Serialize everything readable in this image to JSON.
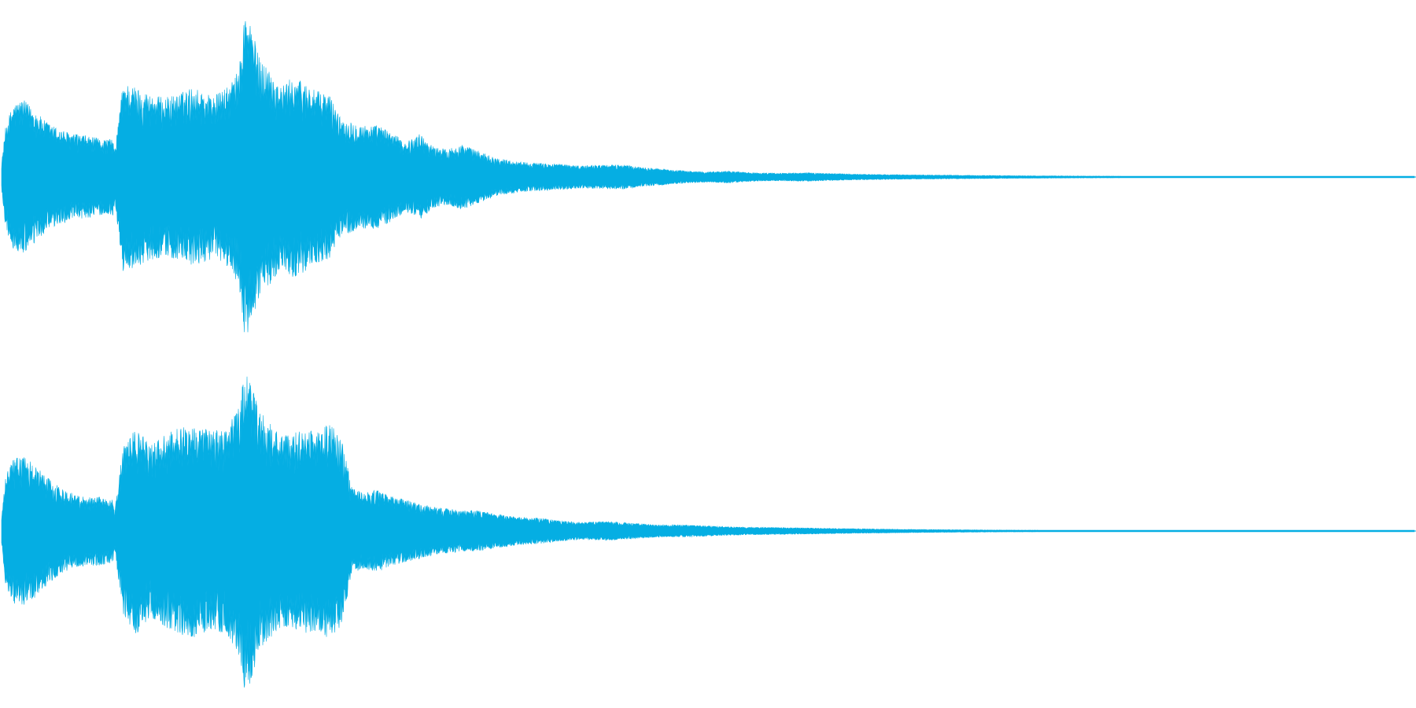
{
  "waveform": {
    "color": "#05aee3",
    "background": "#ffffff",
    "channels": [
      {
        "name": "channel-1",
        "envelope": [
          [
            0.0,
            0.08
          ],
          [
            0.003,
            0.3
          ],
          [
            0.008,
            0.42
          ],
          [
            0.015,
            0.45
          ],
          [
            0.022,
            0.4
          ],
          [
            0.03,
            0.33
          ],
          [
            0.04,
            0.28
          ],
          [
            0.05,
            0.25
          ],
          [
            0.06,
            0.24
          ],
          [
            0.07,
            0.22
          ],
          [
            0.079,
            0.22
          ],
          [
            0.08,
            0.14
          ],
          [
            0.086,
            0.55
          ],
          [
            0.095,
            0.52
          ],
          [
            0.105,
            0.48
          ],
          [
            0.115,
            0.46
          ],
          [
            0.125,
            0.48
          ],
          [
            0.135,
            0.52
          ],
          [
            0.15,
            0.47
          ],
          [
            0.16,
            0.52
          ],
          [
            0.168,
            0.62
          ],
          [
            0.172,
            0.95
          ],
          [
            0.176,
            0.9
          ],
          [
            0.182,
            0.7
          ],
          [
            0.19,
            0.62
          ],
          [
            0.198,
            0.52
          ],
          [
            0.206,
            0.58
          ],
          [
            0.214,
            0.55
          ],
          [
            0.222,
            0.5
          ],
          [
            0.232,
            0.48
          ],
          [
            0.24,
            0.34
          ],
          [
            0.248,
            0.32
          ],
          [
            0.256,
            0.3
          ],
          [
            0.266,
            0.3
          ],
          [
            0.276,
            0.26
          ],
          [
            0.286,
            0.2
          ],
          [
            0.296,
            0.25
          ],
          [
            0.305,
            0.18
          ],
          [
            0.315,
            0.16
          ],
          [
            0.325,
            0.19
          ],
          [
            0.335,
            0.16
          ],
          [
            0.35,
            0.11
          ],
          [
            0.365,
            0.09
          ],
          [
            0.38,
            0.08
          ],
          [
            0.395,
            0.075
          ],
          [
            0.41,
            0.065
          ],
          [
            0.425,
            0.07
          ],
          [
            0.44,
            0.07
          ],
          [
            0.455,
            0.055
          ],
          [
            0.47,
            0.045
          ],
          [
            0.485,
            0.035
          ],
          [
            0.5,
            0.03
          ],
          [
            0.515,
            0.035
          ],
          [
            0.53,
            0.025
          ],
          [
            0.55,
            0.022
          ],
          [
            0.57,
            0.025
          ],
          [
            0.59,
            0.02
          ],
          [
            0.61,
            0.016
          ],
          [
            0.64,
            0.013
          ],
          [
            0.67,
            0.011
          ],
          [
            0.7,
            0.009
          ],
          [
            0.73,
            0.007
          ],
          [
            0.76,
            0.006
          ],
          [
            0.79,
            0.005
          ],
          [
            0.81,
            0.004
          ],
          [
            0.83,
            0.002
          ],
          [
            0.86,
            0.0015
          ],
          [
            1.0,
            0.0008
          ]
        ]
      },
      {
        "name": "channel-2",
        "envelope": [
          [
            0.0,
            0.08
          ],
          [
            0.003,
            0.32
          ],
          [
            0.008,
            0.42
          ],
          [
            0.015,
            0.43
          ],
          [
            0.022,
            0.4
          ],
          [
            0.03,
            0.33
          ],
          [
            0.04,
            0.26
          ],
          [
            0.05,
            0.22
          ],
          [
            0.06,
            0.2
          ],
          [
            0.07,
            0.2
          ],
          [
            0.079,
            0.18
          ],
          [
            0.08,
            0.12
          ],
          [
            0.086,
            0.48
          ],
          [
            0.095,
            0.6
          ],
          [
            0.105,
            0.5
          ],
          [
            0.115,
            0.55
          ],
          [
            0.125,
            0.6
          ],
          [
            0.135,
            0.62
          ],
          [
            0.15,
            0.58
          ],
          [
            0.16,
            0.6
          ],
          [
            0.168,
            0.72
          ],
          [
            0.172,
            0.92
          ],
          [
            0.176,
            0.88
          ],
          [
            0.182,
            0.7
          ],
          [
            0.19,
            0.62
          ],
          [
            0.198,
            0.55
          ],
          [
            0.206,
            0.56
          ],
          [
            0.214,
            0.6
          ],
          [
            0.222,
            0.58
          ],
          [
            0.232,
            0.62
          ],
          [
            0.24,
            0.56
          ],
          [
            0.248,
            0.25
          ],
          [
            0.256,
            0.22
          ],
          [
            0.266,
            0.24
          ],
          [
            0.276,
            0.2
          ],
          [
            0.286,
            0.18
          ],
          [
            0.296,
            0.16
          ],
          [
            0.305,
            0.14
          ],
          [
            0.315,
            0.13
          ],
          [
            0.325,
            0.12
          ],
          [
            0.335,
            0.12
          ],
          [
            0.35,
            0.1
          ],
          [
            0.365,
            0.08
          ],
          [
            0.38,
            0.075
          ],
          [
            0.395,
            0.06
          ],
          [
            0.41,
            0.05
          ],
          [
            0.425,
            0.055
          ],
          [
            0.44,
            0.05
          ],
          [
            0.455,
            0.04
          ],
          [
            0.47,
            0.035
          ],
          [
            0.485,
            0.035
          ],
          [
            0.5,
            0.03
          ],
          [
            0.515,
            0.025
          ],
          [
            0.53,
            0.022
          ],
          [
            0.55,
            0.02
          ],
          [
            0.57,
            0.018
          ],
          [
            0.59,
            0.015
          ],
          [
            0.61,
            0.013
          ],
          [
            0.64,
            0.01
          ],
          [
            0.67,
            0.008
          ],
          [
            0.7,
            0.006
          ],
          [
            0.73,
            0.005
          ],
          [
            0.76,
            0.004
          ],
          [
            0.79,
            0.004
          ],
          [
            0.81,
            0.003
          ],
          [
            0.83,
            0.002
          ],
          [
            0.86,
            0.0015
          ],
          [
            1.0,
            0.0008
          ]
        ]
      }
    ]
  }
}
